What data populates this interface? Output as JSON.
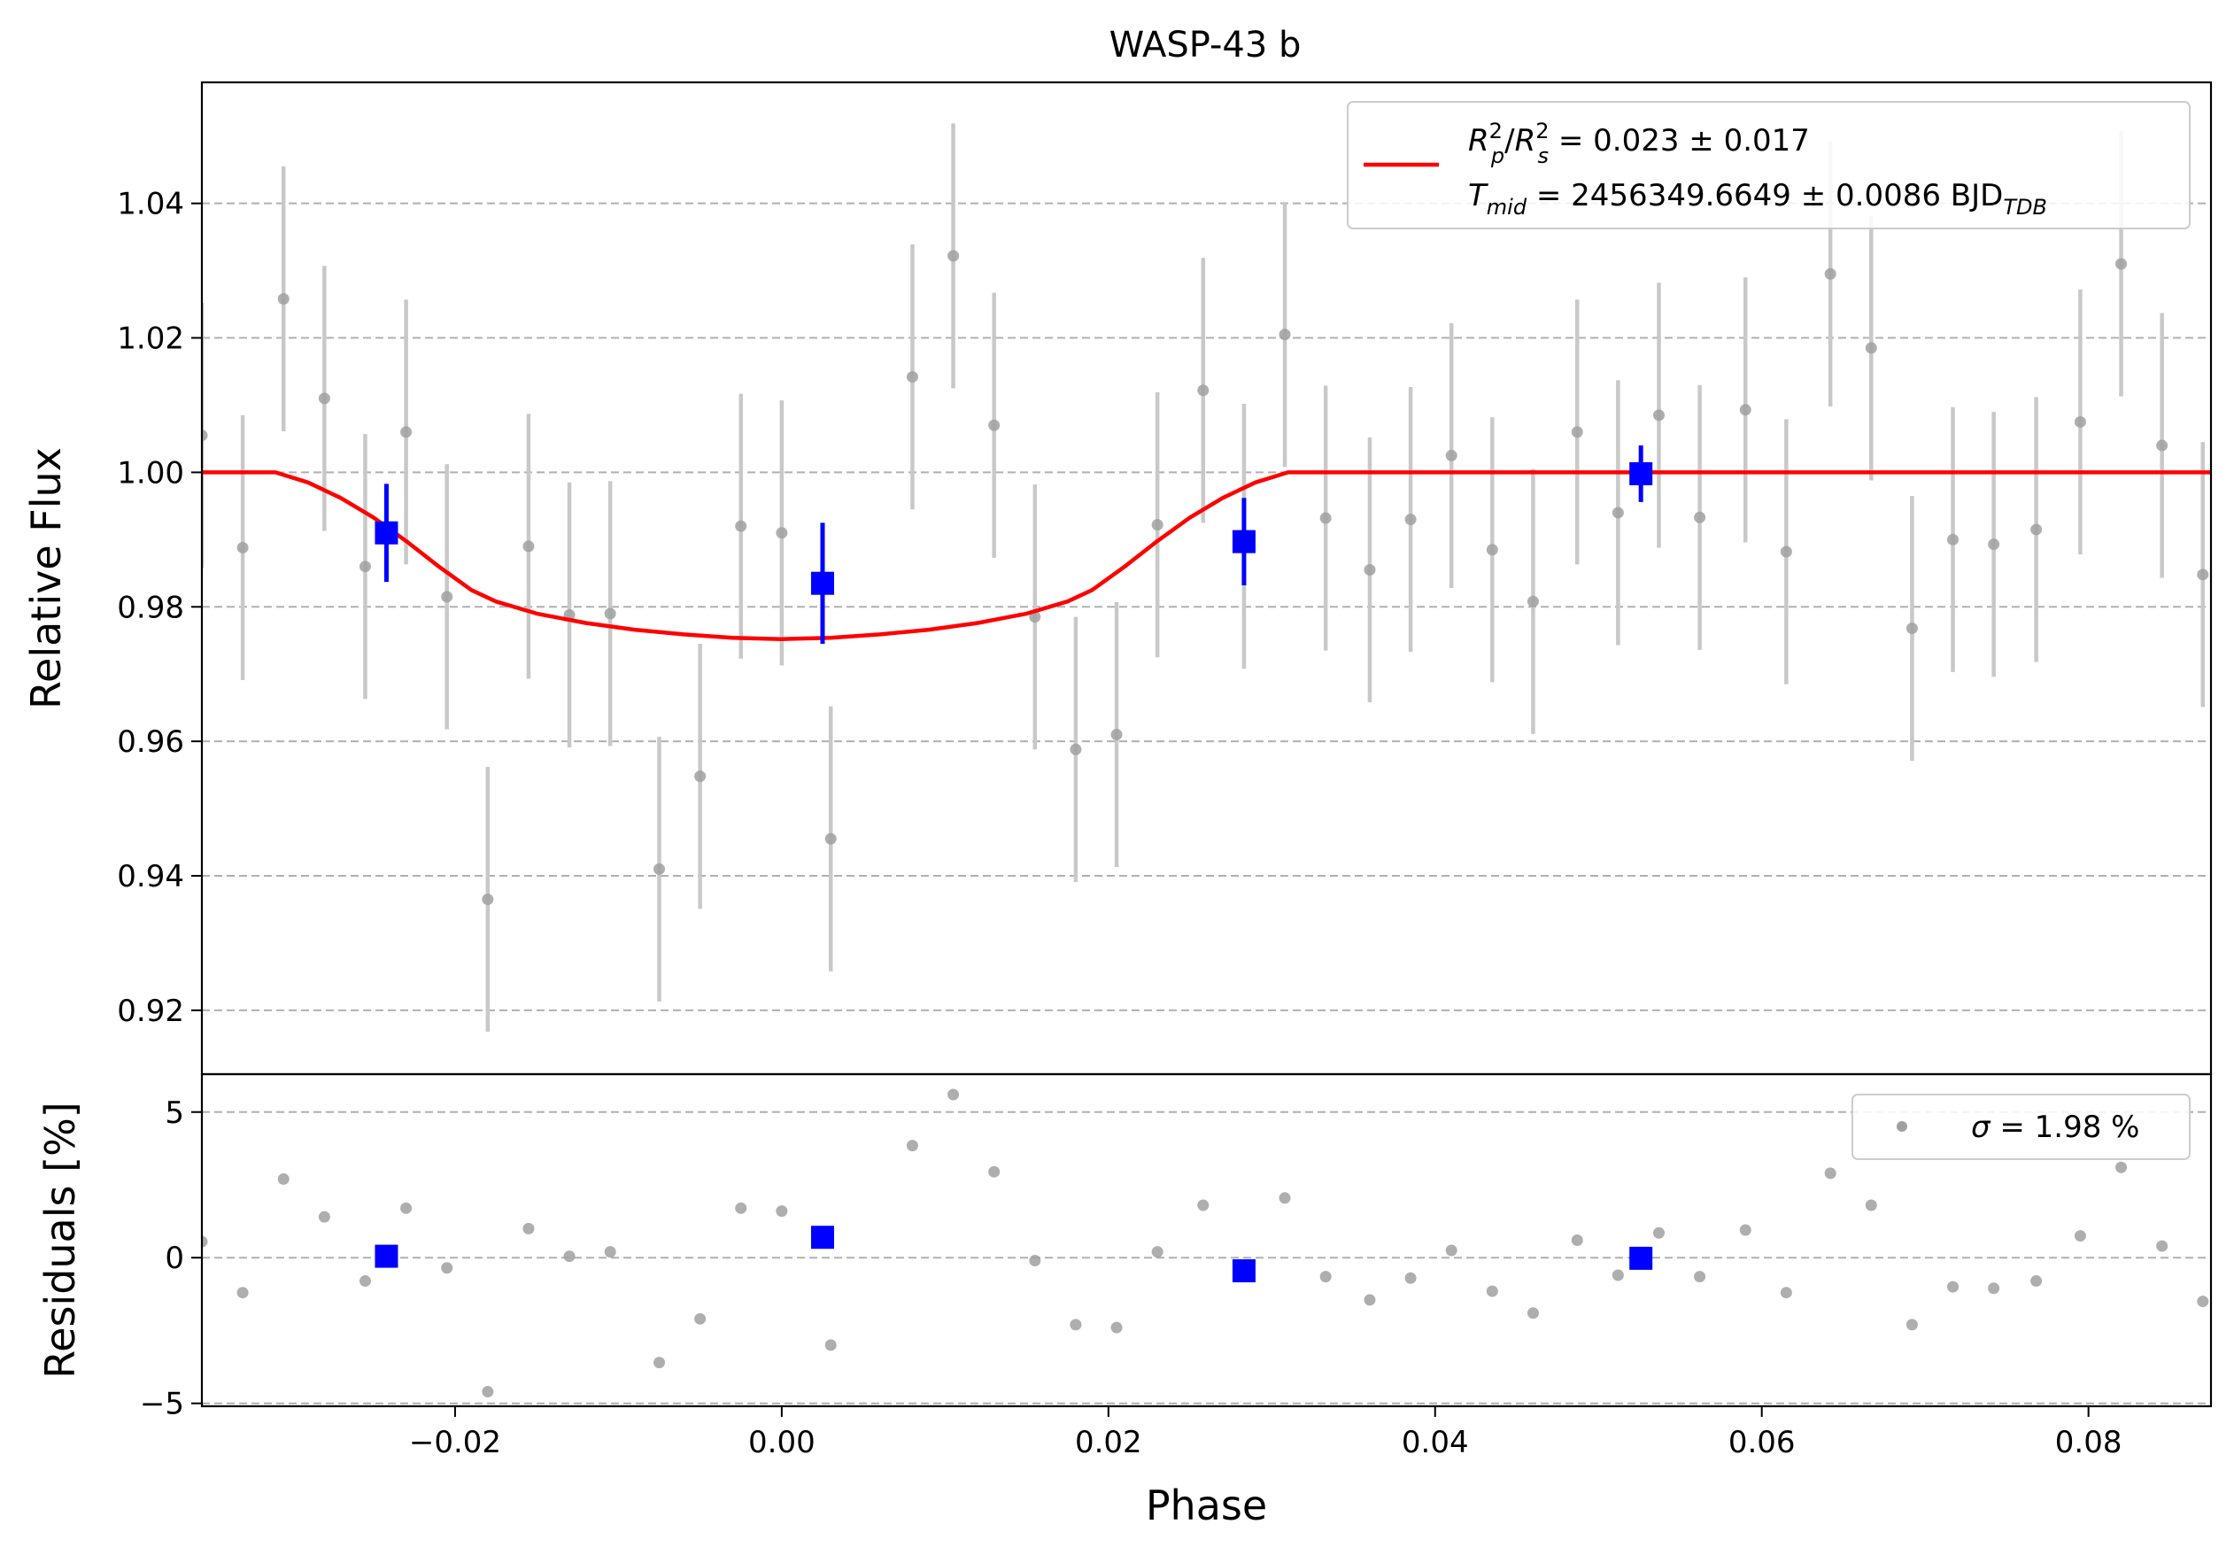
{
  "chart_data": {
    "type": "scatter",
    "title": "WASP-43 b",
    "xlabel": "Phase",
    "xlim": [
      -0.0355,
      0.0875
    ],
    "xticks": [
      -0.02,
      0.0,
      0.02,
      0.04,
      0.06,
      0.08
    ],
    "xtick_labels": [
      "−0.02",
      "0.00",
      "0.02",
      "0.04",
      "0.06",
      "0.08"
    ],
    "grid": "horizontal dashed",
    "colors": {
      "raw": "#a0a0a0",
      "raw_err": "#c8c8c8",
      "binned": "#0000ff",
      "model": "#ff0000",
      "grid": "#b0b0b0"
    },
    "panels": [
      {
        "name": "flux",
        "ylabel": "Relative Flux",
        "ylim": [
          0.9105,
          1.058
        ],
        "yticks": [
          0.92,
          0.94,
          0.96,
          0.98,
          1.0,
          1.02,
          1.04
        ],
        "ytick_labels": [
          "0.92",
          "0.94",
          "0.96",
          "0.98",
          "1.00",
          "1.02",
          "1.04"
        ],
        "legend": {
          "placement": "top-right",
          "line1": {
            "base": "R",
            "sub1": "p",
            "sup1": "2",
            "slash": "/",
            "base2": "R",
            "sub2": "s",
            "sup2": "2",
            "rest": " = 0.023 ± 0.017"
          },
          "line2": {
            "base": "T",
            "sub": "mid",
            "rest": " = 2456349.6649 ± 0.0086 BJD",
            "sub_end": "TDB"
          }
        }
      },
      {
        "name": "residuals",
        "ylabel": "Residuals [%]",
        "ylim": [
          -5.1,
          6.3
        ],
        "yticks": [
          -5,
          0,
          5
        ],
        "ytick_labels": [
          "−5",
          "0",
          "5"
        ],
        "legend": {
          "placement": "top-right",
          "sigma_symbol": "σ",
          "text": " = 1.98 %"
        }
      }
    ],
    "raw_points": {
      "x": [
        -0.0355,
        -0.033,
        -0.0305,
        -0.028,
        -0.0255,
        -0.023,
        -0.0205,
        -0.018,
        -0.0155,
        -0.013,
        -0.0105,
        -0.0075,
        -0.005,
        -0.0025,
        0.0,
        0.003,
        0.008,
        0.0105,
        0.013,
        0.0155,
        0.018,
        0.0205,
        0.023,
        0.0258,
        0.0283,
        0.0308,
        0.0333,
        0.036,
        0.0385,
        0.041,
        0.0435,
        0.046,
        0.0487,
        0.0512,
        0.0537,
        0.0562,
        0.059,
        0.0615,
        0.0642,
        0.0667,
        0.0692,
        0.0717,
        0.0742,
        0.0768,
        0.0795,
        0.082,
        0.0845,
        0.087
      ],
      "flux": [
        1.0055,
        0.9888,
        1.0258,
        1.011,
        0.986,
        1.006,
        0.9815,
        0.9365,
        0.989,
        0.9788,
        0.979,
        0.941,
        0.9548,
        0.992,
        0.991,
        0.9455,
        1.0142,
        1.0322,
        1.007,
        0.9785,
        0.9588,
        0.961,
        0.9922,
        1.0122,
        0.9905,
        1.0205,
        0.9932,
        0.9855,
        0.993,
        1.0025,
        0.9885,
        0.9808,
        1.006,
        0.994,
        1.0085,
        0.9933,
        1.0093,
        0.9882,
        1.0295,
        1.0185,
        0.9768,
        0.99,
        0.9893,
        0.9915,
        1.0075,
        1.031,
        1.004,
        0.9848
      ],
      "flux_err": 0.0197,
      "residuals": [
        0.55,
        -1.2,
        2.7,
        1.4,
        -0.8,
        1.7,
        -0.35,
        -4.6,
        1.0,
        0.05,
        0.2,
        -3.6,
        -2.1,
        1.7,
        1.6,
        -3.0,
        3.85,
        5.6,
        2.95,
        -0.1,
        -2.3,
        -2.4,
        0.2,
        1.8,
        -0.5,
        2.05,
        -0.65,
        -1.45,
        -0.7,
        0.25,
        -1.15,
        -1.9,
        0.6,
        -0.6,
        0.85,
        -0.65,
        0.95,
        -1.2,
        2.9,
        1.8,
        -2.3,
        -1.0,
        -1.05,
        -0.8,
        0.75,
        3.1,
        0.4,
        -1.5
      ]
    },
    "binned_points": {
      "x": [
        -0.0242,
        0.0025,
        0.0283,
        0.0526
      ],
      "flux": [
        0.991,
        0.9835,
        0.9897,
        0.9998
      ],
      "flux_err": [
        0.0073,
        0.009,
        0.0065,
        0.0042
      ],
      "residuals": [
        0.05,
        0.7,
        -0.45,
        -0.02
      ]
    },
    "model": {
      "name": "transit model",
      "x": [
        -0.0355,
        -0.031,
        -0.029,
        -0.027,
        -0.025,
        -0.023,
        -0.021,
        -0.019,
        -0.0175,
        -0.015,
        -0.012,
        -0.009,
        -0.006,
        -0.003,
        0.0,
        0.003,
        0.006,
        0.009,
        0.012,
        0.015,
        0.0175,
        0.019,
        0.021,
        0.023,
        0.025,
        0.027,
        0.029,
        0.031,
        0.0875
      ],
      "y": [
        1.0,
        1.0,
        0.9985,
        0.9962,
        0.9933,
        0.9898,
        0.986,
        0.9825,
        0.9808,
        0.979,
        0.9776,
        0.9766,
        0.9759,
        0.9754,
        0.9752,
        0.9754,
        0.9759,
        0.9766,
        0.9776,
        0.979,
        0.9808,
        0.9825,
        0.986,
        0.9898,
        0.9933,
        0.9962,
        0.9985,
        1.0,
        1.0
      ]
    }
  }
}
